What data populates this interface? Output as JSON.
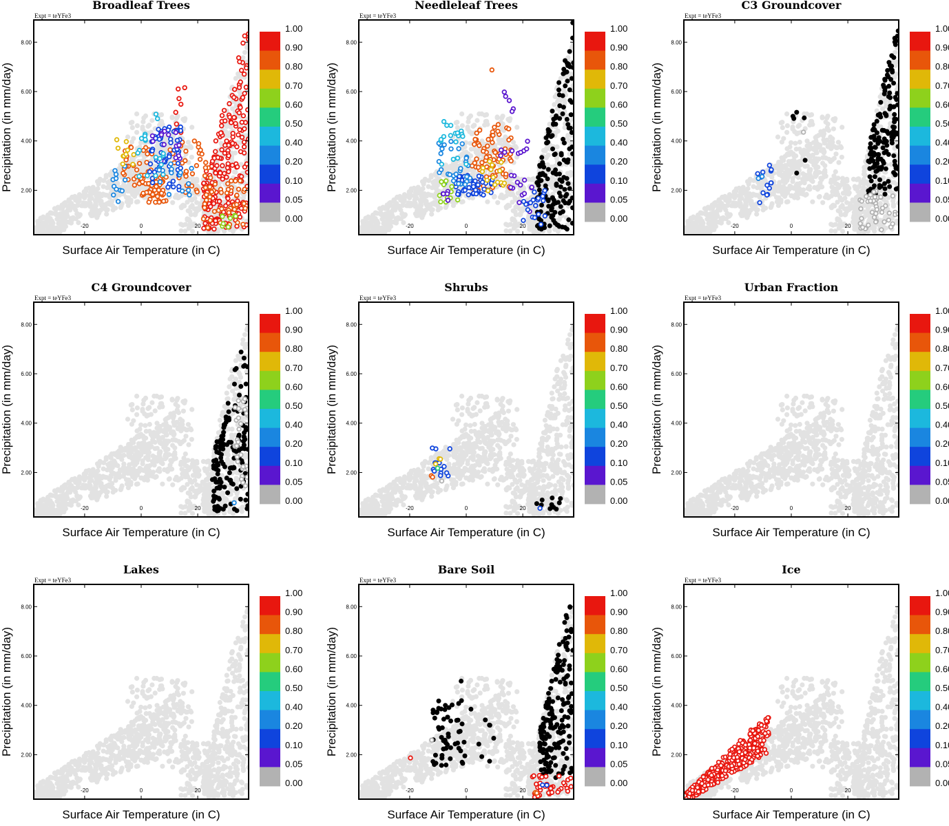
{
  "chart_data": {
    "type": "scatter",
    "experiment_label": "Expt = teYFe3",
    "xlabel": "Surface Air Temperature (in C)",
    "ylabel": "Precipitation (in mm/day)",
    "xlim": [
      -38,
      38
    ],
    "ylim": [
      0.2,
      8.9
    ],
    "x_ticks": [
      -20,
      0,
      20
    ],
    "x_tick_labels": [
      "-20",
      "0",
      "20"
    ],
    "y_ticks": [
      2,
      4,
      6,
      8
    ],
    "y_tick_labels": [
      "2.00",
      "4.00",
      "6.00",
      "8.00"
    ],
    "colorbar": {
      "levels": [
        "1.00",
        "0.90",
        "0.80",
        "0.70",
        "0.60",
        "0.50",
        "0.40",
        "0.20",
        "0.10",
        "0.05",
        "0.00"
      ],
      "colors": [
        "#e8170f",
        "#e8560a",
        "#e0b808",
        "#8ed11c",
        "#25cc7d",
        "#1cb8dd",
        "#1a86e0",
        "#0f44dd",
        "#5a16cf",
        "#b2b2b2"
      ]
    },
    "background_color": "#e2e2e2",
    "zero_fraction_color": "#b2b2b2",
    "panels": [
      {
        "title": "Broadleaf Trees",
        "clusters": [
          {
            "x": [
              22,
              38
            ],
            "y": [
              0.4,
              8.8
            ],
            "n": 220,
            "bin": 0,
            "shape": "tri"
          },
          {
            "x": [
              22,
              37
            ],
            "y": [
              0.4,
              2.4
            ],
            "n": 45,
            "bin": 1
          },
          {
            "x": [
              -1,
              9
            ],
            "y": [
              1.5,
              2.6
            ],
            "n": 55,
            "bin": 1
          },
          {
            "x": [
              10,
              25
            ],
            "y": [
              1.8,
              4.0
            ],
            "n": 35,
            "bin": 1
          },
          {
            "x": [
              -7,
              4
            ],
            "y": [
              2.2,
              3.8
            ],
            "n": 30,
            "bin": 1
          },
          {
            "x": [
              12,
              16
            ],
            "y": [
              4.0,
              6.3
            ],
            "n": 8,
            "bin": 0
          },
          {
            "x": [
              3,
              14
            ],
            "y": [
              2.0,
              4.6
            ],
            "n": 60,
            "bin": 7
          },
          {
            "x": [
              -10,
              -5
            ],
            "y": [
              1.5,
              3.0
            ],
            "n": 12,
            "bin": 6
          },
          {
            "x": [
              -9,
              -2
            ],
            "y": [
              3.0,
              4.2
            ],
            "n": 10,
            "bin": 2
          },
          {
            "x": [
              4,
              14
            ],
            "y": [
              3.0,
              4.5
            ],
            "n": 15,
            "bin": 8
          },
          {
            "x": [
              -2,
              8
            ],
            "y": [
              2.5,
              5.2
            ],
            "n": 18,
            "bin": 5
          },
          {
            "x": [
              6,
              18
            ],
            "y": [
              1.8,
              3.2
            ],
            "n": 15,
            "bin": 6
          },
          {
            "x": [
              28,
              34
            ],
            "y": [
              0.4,
              1.0
            ],
            "n": 8,
            "bin": 3
          }
        ]
      },
      {
        "title": "Needleleaf Trees",
        "clusters": [
          {
            "x": [
              25,
              38
            ],
            "y": [
              0.4,
              9.0
            ],
            "n": 170,
            "bin": 10,
            "shape": "tri"
          },
          {
            "x": [
              2,
              16
            ],
            "y": [
              2.0,
              4.7
            ],
            "n": 80,
            "bin": 1
          },
          {
            "x": [
              9,
              11
            ],
            "y": [
              6.6,
              7.2
            ],
            "n": 1,
            "bin": 1
          },
          {
            "x": [
              -5,
              10
            ],
            "y": [
              1.8,
              2.6
            ],
            "n": 55,
            "bin": 7
          },
          {
            "x": [
              -10,
              2
            ],
            "y": [
              2.2,
              4.0
            ],
            "n": 30,
            "bin": 6
          },
          {
            "x": [
              -10,
              -3
            ],
            "y": [
              1.5,
              2.4
            ],
            "n": 12,
            "bin": 3
          },
          {
            "x": [
              -9,
              3
            ],
            "y": [
              3.0,
              4.8
            ],
            "n": 18,
            "bin": 5
          },
          {
            "x": [
              12,
              24
            ],
            "y": [
              1.0,
              4.0
            ],
            "n": 25,
            "bin": 8
          },
          {
            "x": [
              13,
              17
            ],
            "y": [
              5.0,
              6.3
            ],
            "n": 5,
            "bin": 8
          },
          {
            "x": [
              20,
              28
            ],
            "y": [
              0.6,
              2.0
            ],
            "n": 20,
            "bin": 7
          },
          {
            "x": [
              5,
              15
            ],
            "y": [
              1.8,
              3.5
            ],
            "n": 15,
            "bin": 2
          },
          {
            "x": [
              -10,
              -6
            ],
            "y": [
              1.5,
              2.2
            ],
            "n": 6,
            "bin": 8
          }
        ]
      },
      {
        "title": "C3 Groundcover",
        "clusters": [
          {
            "x": [
              27,
              38
            ],
            "y": [
              1.8,
              8.9
            ],
            "n": 160,
            "bin": 10,
            "shape": "tri"
          },
          {
            "x": [
              -2,
              6
            ],
            "y": [
              1.8,
              5.2
            ],
            "n": 6,
            "bin": 10
          },
          {
            "x": [
              24,
              38
            ],
            "y": [
              0.4,
              2.0
            ],
            "n": 45,
            "bin": 9
          },
          {
            "x": [
              -13,
              -7
            ],
            "y": [
              1.5,
              3.1
            ],
            "n": 14,
            "bin": 7
          },
          {
            "x": [
              -12,
              -9
            ],
            "y": [
              2.2,
              2.6
            ],
            "n": 3,
            "bin": 6
          },
          {
            "x": [
              4,
              6
            ],
            "y": [
              4.1,
              4.4
            ],
            "n": 1,
            "bin": 9
          }
        ]
      },
      {
        "title": "C4 Groundcover",
        "clusters": [
          {
            "x": [
              25,
              38
            ],
            "y": [
              0.4,
              8.5
            ],
            "n": 150,
            "bin": 10,
            "shape": "tri"
          },
          {
            "x": [
              33,
              38
            ],
            "y": [
              1.2,
              5.0
            ],
            "n": 30,
            "bin": 9
          },
          {
            "x": [
              32,
              34
            ],
            "y": [
              0.5,
              0.8
            ],
            "n": 1,
            "bin": 6
          }
        ]
      },
      {
        "title": "Shrubs",
        "clusters": [
          {
            "x": [
              -12,
              -5
            ],
            "y": [
              1.6,
              3.1
            ],
            "n": 14,
            "bin": 7
          },
          {
            "x": [
              -12,
              -9
            ],
            "y": [
              2.2,
              2.6
            ],
            "n": 3,
            "bin": 2
          },
          {
            "x": [
              -13,
              -11
            ],
            "y": [
              1.7,
              2.0
            ],
            "n": 2,
            "bin": 1
          },
          {
            "x": [
              -11,
              -10
            ],
            "y": [
              2.0,
              2.3
            ],
            "n": 1,
            "bin": 4
          },
          {
            "x": [
              -9,
              -7
            ],
            "y": [
              1.5,
              1.7
            ],
            "n": 1,
            "bin": 9
          },
          {
            "x": [
              24,
              34
            ],
            "y": [
              0.5,
              1.0
            ],
            "n": 10,
            "bin": 10
          },
          {
            "x": [
              26,
              28
            ],
            "y": [
              0.5,
              0.6
            ],
            "n": 1,
            "bin": 7
          }
        ]
      },
      {
        "title": "Urban Fraction",
        "clusters": []
      },
      {
        "title": "Lakes",
        "clusters": []
      },
      {
        "title": "Bare Soil",
        "clusters": [
          {
            "x": [
              26,
              38
            ],
            "y": [
              1.0,
              9.0
            ],
            "n": 170,
            "bin": 10,
            "shape": "tri"
          },
          {
            "x": [
              -12,
              0
            ],
            "y": [
              1.5,
              4.2
            ],
            "n": 55,
            "bin": 10
          },
          {
            "x": [
              -3,
              10
            ],
            "y": [
              1.5,
              5.2
            ],
            "n": 10,
            "bin": 10
          },
          {
            "x": [
              23,
              38
            ],
            "y": [
              0.25,
              1.2
            ],
            "n": 35,
            "bin": 0
          },
          {
            "x": [
              24,
              27
            ],
            "y": [
              0.3,
              0.6
            ],
            "n": 2,
            "bin": 1
          },
          {
            "x": [
              -20,
              -19
            ],
            "y": [
              1.8,
              1.9
            ],
            "n": 1,
            "bin": 0
          },
          {
            "x": [
              -13,
              -11
            ],
            "y": [
              2.4,
              2.6
            ],
            "n": 1,
            "bin": 9
          },
          {
            "x": [
              26,
              29
            ],
            "y": [
              0.6,
              0.8
            ],
            "n": 2,
            "bin": 7
          }
        ]
      },
      {
        "title": "Ice",
        "clusters": [
          {
            "x": [
              -38,
              -8
            ],
            "y": [
              0.2,
              3.5
            ],
            "n": 380,
            "bin": 0,
            "shape": "ice"
          }
        ]
      }
    ]
  }
}
